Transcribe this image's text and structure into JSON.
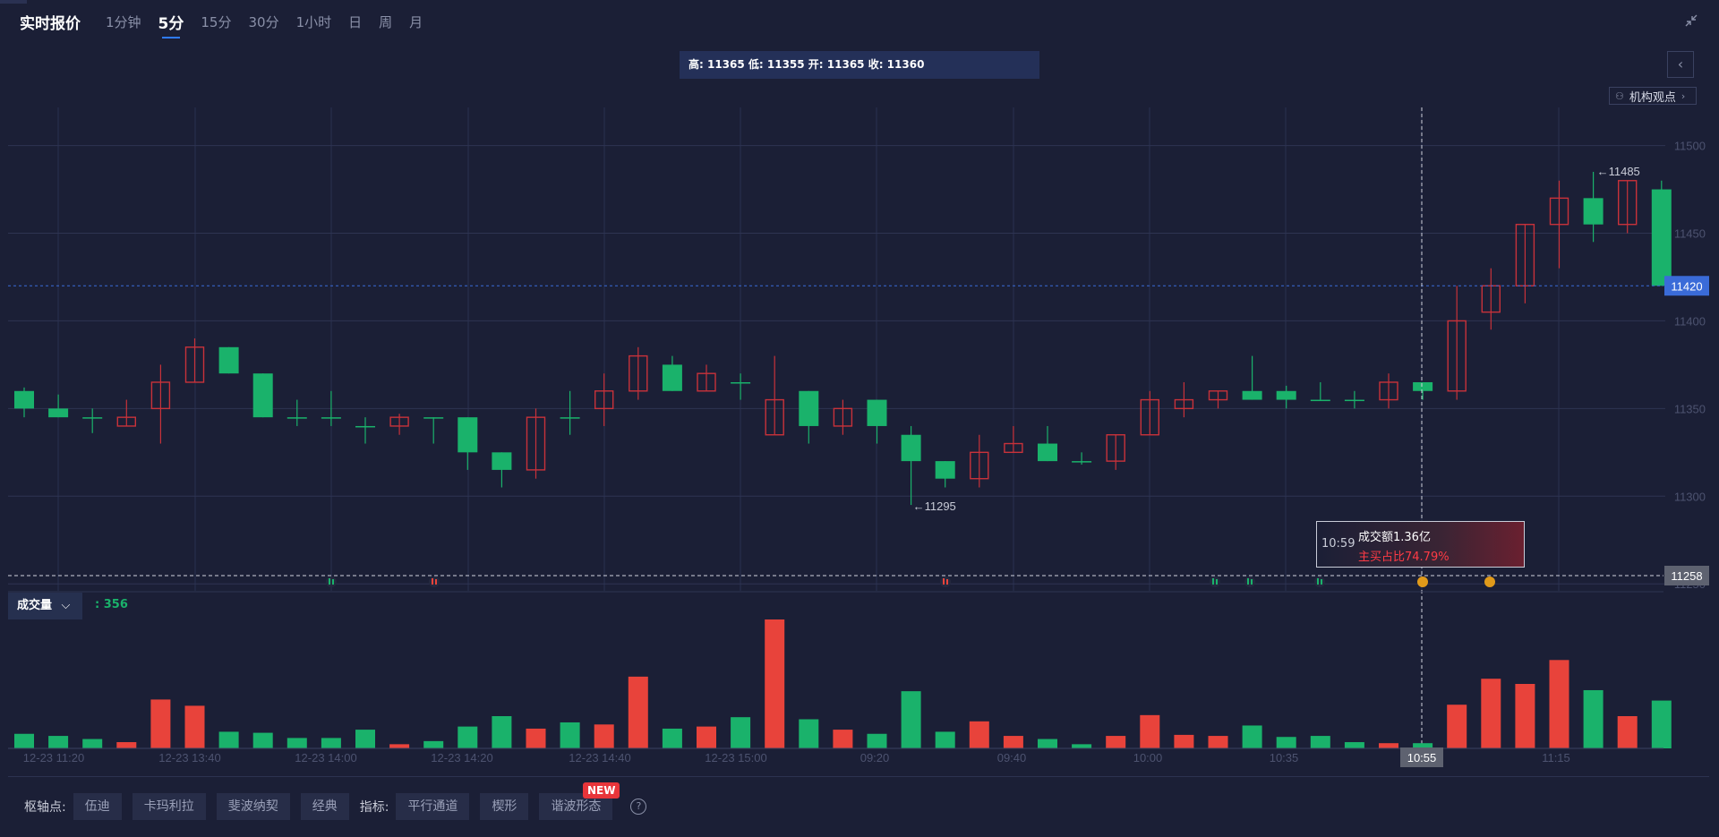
{
  "header": {
    "title": "实时报价",
    "tabs": [
      {
        "label": "1分钟",
        "active": false
      },
      {
        "label": "5分",
        "active": true
      },
      {
        "label": "15分",
        "active": false
      },
      {
        "label": "30分",
        "active": false
      },
      {
        "label": "1小时",
        "active": false
      },
      {
        "label": "日",
        "active": false
      },
      {
        "label": "周",
        "active": false
      },
      {
        "label": "月",
        "active": false
      }
    ]
  },
  "ohlc_text": "高: 11365 低: 11355 开: 11365 收: 11360",
  "institution_button": "机构观点",
  "volume": {
    "selector_label": "成交量",
    "value_text": ": 356"
  },
  "tooltip": {
    "time": "10:59",
    "amount": "成交额1.36亿",
    "ratio": "主买占比74.79%"
  },
  "footer": {
    "pivot_label": "枢轴点:",
    "pivot_buttons": [
      "伍迪",
      "卡玛利拉",
      "斐波纳契",
      "经典"
    ],
    "indicator_label": "指标:",
    "indicator_buttons": [
      "平行通道",
      "楔形",
      "谐波形态"
    ],
    "new_badge": "NEW"
  },
  "colors": {
    "up": "#c8323a",
    "down": "#1ab26b",
    "vol_up": "#e8433b",
    "vol_down": "#1ab26b",
    "accent": "#2f7bff",
    "last_price_bg": "#3a6bd8"
  },
  "chart_data": {
    "type": "candlestick",
    "y_ticks": [
      11500,
      11450,
      11400,
      11350,
      11300,
      11250
    ],
    "ylim": [
      11245,
      11510
    ],
    "last_price": 11420,
    "crosshair_price": 11258,
    "crosshair_time": "10:55",
    "max_label": "11485",
    "min_label": "11295",
    "x_tick_labels": [
      "12-23 11:20",
      "12-23 13:40",
      "12-23 14:00",
      "12-23 14:20",
      "12-23 14:40",
      "12-23 15:00",
      "09:20",
      "09:40",
      "10:00",
      "10:35",
      "10:55",
      "11:15"
    ],
    "candles": [
      {
        "o": 11360,
        "h": 11362,
        "l": 11345,
        "c": 11350
      },
      {
        "o": 11350,
        "h": 11358,
        "l": 11345,
        "c": 11345
      },
      {
        "o": 11345,
        "h": 11350,
        "l": 11336,
        "c": 11345
      },
      {
        "o": 11340,
        "h": 11355,
        "l": 11340,
        "c": 11345
      },
      {
        "o": 11350,
        "h": 11375,
        "l": 11330,
        "c": 11365
      },
      {
        "o": 11365,
        "h": 11390,
        "l": 11365,
        "c": 11385
      },
      {
        "o": 11385,
        "h": 11385,
        "l": 11370,
        "c": 11370
      },
      {
        "o": 11370,
        "h": 11370,
        "l": 11345,
        "c": 11345
      },
      {
        "o": 11345,
        "h": 11355,
        "l": 11340,
        "c": 11345
      },
      {
        "o": 11345,
        "h": 11360,
        "l": 11340,
        "c": 11345
      },
      {
        "o": 11340,
        "h": 11345,
        "l": 11330,
        "c": 11340
      },
      {
        "o": 11340,
        "h": 11347,
        "l": 11335,
        "c": 11345
      },
      {
        "o": 11345,
        "h": 11345,
        "l": 11330,
        "c": 11345
      },
      {
        "o": 11345,
        "h": 11345,
        "l": 11315,
        "c": 11325
      },
      {
        "o": 11325,
        "h": 11325,
        "l": 11305,
        "c": 11315
      },
      {
        "o": 11315,
        "h": 11350,
        "l": 11310,
        "c": 11345
      },
      {
        "o": 11345,
        "h": 11360,
        "l": 11335,
        "c": 11345
      },
      {
        "o": 11350,
        "h": 11370,
        "l": 11340,
        "c": 11360
      },
      {
        "o": 11360,
        "h": 11385,
        "l": 11355,
        "c": 11380
      },
      {
        "o": 11375,
        "h": 11380,
        "l": 11360,
        "c": 11360
      },
      {
        "o": 11360,
        "h": 11375,
        "l": 11360,
        "c": 11370
      },
      {
        "o": 11365,
        "h": 11370,
        "l": 11355,
        "c": 11365
      },
      {
        "o": 11335,
        "h": 11380,
        "l": 11335,
        "c": 11355
      },
      {
        "o": 11360,
        "h": 11360,
        "l": 11330,
        "c": 11340
      },
      {
        "o": 11340,
        "h": 11355,
        "l": 11335,
        "c": 11350
      },
      {
        "o": 11355,
        "h": 11355,
        "l": 11330,
        "c": 11340
      },
      {
        "o": 11335,
        "h": 11340,
        "l": 11295,
        "c": 11320
      },
      {
        "o": 11320,
        "h": 11320,
        "l": 11305,
        "c": 11310
      },
      {
        "o": 11310,
        "h": 11335,
        "l": 11305,
        "c": 11325
      },
      {
        "o": 11325,
        "h": 11340,
        "l": 11325,
        "c": 11330
      },
      {
        "o": 11330,
        "h": 11340,
        "l": 11320,
        "c": 11320
      },
      {
        "o": 11320,
        "h": 11325,
        "l": 11318,
        "c": 11320
      },
      {
        "o": 11320,
        "h": 11335,
        "l": 11315,
        "c": 11335
      },
      {
        "o": 11335,
        "h": 11360,
        "l": 11335,
        "c": 11355
      },
      {
        "o": 11350,
        "h": 11365,
        "l": 11345,
        "c": 11355
      },
      {
        "o": 11355,
        "h": 11360,
        "l": 11350,
        "c": 11360
      },
      {
        "o": 11360,
        "h": 11380,
        "l": 11355,
        "c": 11355
      },
      {
        "o": 11360,
        "h": 11363,
        "l": 11350,
        "c": 11355
      },
      {
        "o": 11355,
        "h": 11365,
        "l": 11355,
        "c": 11355
      },
      {
        "o": 11355,
        "h": 11360,
        "l": 11350,
        "c": 11355
      },
      {
        "o": 11355,
        "h": 11370,
        "l": 11350,
        "c": 11365
      },
      {
        "o": 11365,
        "h": 11365,
        "l": 11355,
        "c": 11360
      },
      {
        "o": 11360,
        "h": 11420,
        "l": 11355,
        "c": 11400
      },
      {
        "o": 11405,
        "h": 11430,
        "l": 11395,
        "c": 11420
      },
      {
        "o": 11420,
        "h": 11455,
        "l": 11410,
        "c": 11455
      },
      {
        "o": 11455,
        "h": 11480,
        "l": 11430,
        "c": 11470
      },
      {
        "o": 11470,
        "h": 11485,
        "l": 11445,
        "c": 11455
      },
      {
        "o": 11455,
        "h": 11480,
        "l": 11450,
        "c": 11480
      },
      {
        "o": 11475,
        "h": 11480,
        "l": 11420,
        "c": 11420
      }
    ],
    "volumes": [
      14,
      12,
      9,
      6,
      47,
      41,
      16,
      15,
      10,
      10,
      18,
      4,
      7,
      21,
      31,
      19,
      25,
      23,
      69,
      19,
      21,
      30,
      124,
      28,
      18,
      14,
      55,
      16,
      26,
      12,
      9,
      4,
      12,
      32,
      13,
      12,
      22,
      11,
      12,
      6,
      5,
      5,
      42,
      67,
      62,
      85,
      56,
      31,
      46
    ],
    "volume_up": [
      false,
      false,
      false,
      true,
      true,
      true,
      false,
      false,
      false,
      false,
      false,
      true,
      false,
      false,
      false,
      true,
      false,
      true,
      true,
      false,
      true,
      false,
      true,
      false,
      true,
      false,
      false,
      false,
      true,
      true,
      false,
      false,
      true,
      true,
      true,
      true,
      false,
      false,
      false,
      false,
      true,
      false,
      true,
      true,
      true,
      true,
      false,
      true,
      false
    ]
  }
}
